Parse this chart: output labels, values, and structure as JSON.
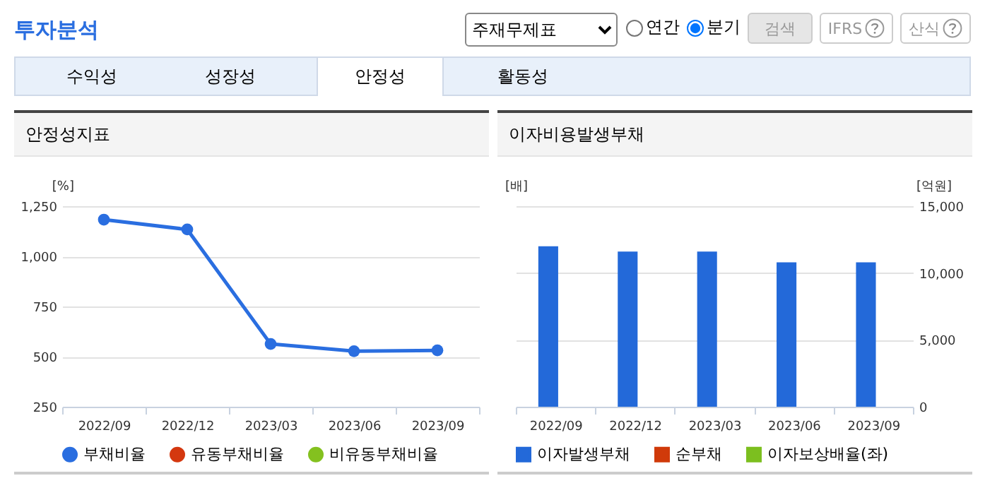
{
  "chart_data": [
    {
      "type": "other",
      "title": "투자분석",
      "annotations": [
        "주재무제표",
        "연간",
        "분기",
        "검색",
        "IFRS",
        "산식",
        "수익성",
        "성장성",
        "안정성",
        "활동성"
      ]
    },
    {
      "type": "line",
      "title": "안정성지표",
      "ylabel": "[%]",
      "categories": [
        "2022/09",
        "2022/12",
        "2023/03",
        "2023/06",
        "2023/09"
      ],
      "series": [
        {
          "name": "부채비율",
          "color": "#2a6ee0",
          "values": [
            1183,
            1134,
            563,
            527,
            531
          ]
        },
        {
          "name": "유동부채비율",
          "color": "#d4380f",
          "values": [
            null,
            null,
            null,
            null,
            null
          ]
        },
        {
          "name": "비유동부채비율",
          "color": "#84c11f",
          "values": [
            null,
            null,
            null,
            null,
            null
          ]
        }
      ],
      "ylim": [
        250,
        1250
      ],
      "yticks": [
        250,
        500,
        750,
        {
          "value": 1000,
          "label": "1,000"
        },
        {
          "value": 1250,
          "label": "1,250"
        }
      ],
      "grid": "y",
      "legend": "bottom",
      "marker": "circle"
    },
    {
      "type": "bar",
      "title": "이자비용발생부채",
      "ylabel": "[배]",
      "y2label": "[억원]",
      "categories": [
        "2022/09",
        "2022/12",
        "2023/03",
        "2023/06",
        "2023/09"
      ],
      "series": [
        {
          "name": "이자발생부채",
          "color": "#2369d9",
          "axis": "y2",
          "values": [
            12000,
            11600,
            11600,
            10800,
            10800
          ]
        },
        {
          "name": "순부채",
          "color": "#d03a0a",
          "axis": "y2",
          "values": [
            null,
            null,
            null,
            null,
            null
          ]
        },
        {
          "name": "이자보상배율(좌)",
          "type": "line",
          "color": "#7cbf1f",
          "axis": "y",
          "values": [
            null,
            null,
            null,
            null,
            null
          ]
        }
      ],
      "y2lim": [
        0,
        15000
      ],
      "y2ticks": [
        0,
        {
          "value": 5000,
          "label": "5,000"
        },
        {
          "value": 10000,
          "label": "10,000"
        },
        {
          "value": 15000,
          "label": "15,000"
        }
      ],
      "grid": "y",
      "legend": "bottom"
    }
  ]
}
